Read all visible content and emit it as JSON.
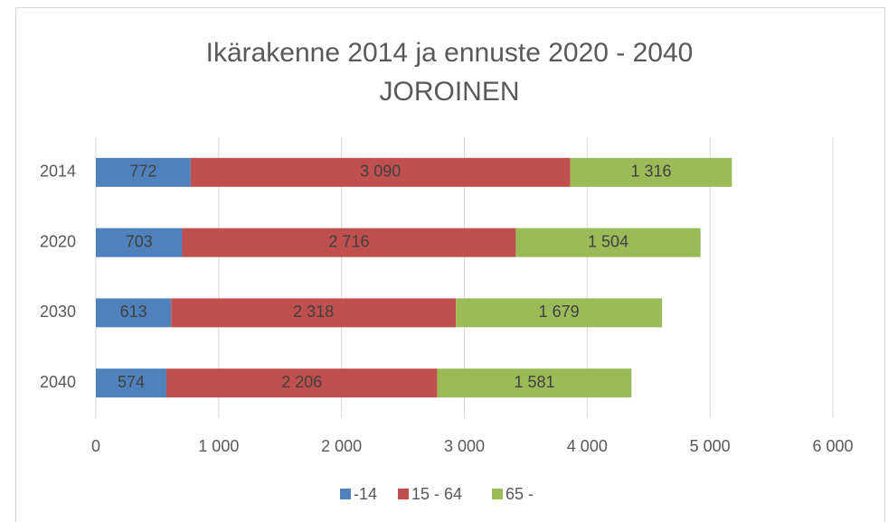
{
  "chart_data": {
    "type": "stacked_barh",
    "title": "Ikärakenne 2014 ja ennuste 2020 - 2040",
    "subtitle": "JOROINEN",
    "categories": [
      "2014",
      "2020",
      "2030",
      "2040"
    ],
    "series": [
      {
        "name": "-14",
        "color": "#4f81bd",
        "values": [
          772,
          703,
          613,
          574
        ],
        "value_labels": [
          "772",
          "703",
          "613",
          "574"
        ]
      },
      {
        "name": "15 - 64",
        "color": "#c0504d",
        "values": [
          3090,
          2716,
          2318,
          2206
        ],
        "value_labels": [
          "3 090",
          "2 716",
          "2 318",
          "2 206"
        ]
      },
      {
        "name": "65 -",
        "color": "#9bbb59",
        "values": [
          1316,
          1504,
          1679,
          1581
        ],
        "value_labels": [
          "1 316",
          "1 504",
          "1 679",
          "1 581"
        ]
      }
    ],
    "xlim": [
      0,
      6000
    ],
    "xticks": [
      0,
      {
        "value": 1000,
        "label": "1 000"
      },
      {
        "value": 2000,
        "label": "2 000"
      },
      {
        "value": 3000,
        "label": "3 000"
      },
      {
        "value": 4000,
        "label": "4 000"
      },
      {
        "value": 5000,
        "label": "5 000"
      },
      {
        "value": 6000,
        "label": "6 000"
      }
    ],
    "grid": true,
    "legend": "bottom"
  }
}
